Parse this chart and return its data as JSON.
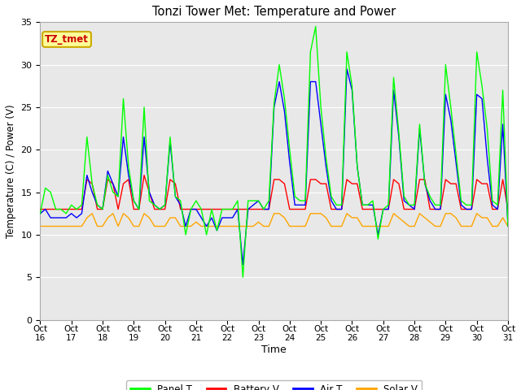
{
  "title": "Tonzi Tower Met: Temperature and Power",
  "xlabel": "Time",
  "ylabel": "Temperature (C) / Power (V)",
  "xlim": [
    0,
    15
  ],
  "ylim": [
    0,
    35
  ],
  "yticks": [
    0,
    5,
    10,
    15,
    20,
    25,
    30,
    35
  ],
  "xtick_labels": [
    "Oct 16",
    "Oct 17",
    "Oct 18",
    "Oct 19",
    "Oct 20",
    "Oct 21",
    "Oct 22",
    "Oct 23",
    "Oct 24",
    "Oct 25",
    "Oct 26",
    "Oct 27",
    "Oct 28",
    "Oct 29",
    "Oct 30",
    "Oct 31"
  ],
  "fig_bg_color": "#ffffff",
  "plot_bg_color": "#e8e8e8",
  "grid_color": "#ffffff",
  "colors": {
    "panel_t": "#00ff00",
    "battery_v": "#ff0000",
    "air_t": "#0000ff",
    "solar_v": "#ffa500"
  },
  "legend_label": "TZ_tmet",
  "legend_box_color": "#ffff99",
  "legend_box_edge": "#ccaa00",
  "series_names": [
    "Panel T",
    "Battery V",
    "Air T",
    "Solar V"
  ],
  "panel_t": [
    12.5,
    15.5,
    15.0,
    13.0,
    13.0,
    12.5,
    13.5,
    13.0,
    13.5,
    21.5,
    16.0,
    13.5,
    13.0,
    17.0,
    15.0,
    14.5,
    26.0,
    18.0,
    14.0,
    13.0,
    25.0,
    14.0,
    13.5,
    13.0,
    13.5,
    21.5,
    14.5,
    14.0,
    10.0,
    13.0,
    14.0,
    13.0,
    10.0,
    13.0,
    10.5,
    13.0,
    13.0,
    13.0,
    14.0,
    5.0,
    14.0,
    14.0,
    14.0,
    13.0,
    14.0,
    25.5,
    30.0,
    26.0,
    20.0,
    14.5,
    14.0,
    14.0,
    31.5,
    34.5,
    25.0,
    19.0,
    14.5,
    13.5,
    13.5,
    31.5,
    27.5,
    18.0,
    13.5,
    13.5,
    14.0,
    9.5,
    13.0,
    13.5,
    28.5,
    22.0,
    14.5,
    13.5,
    13.5,
    23.0,
    16.0,
    14.5,
    13.5,
    13.5,
    30.0,
    25.0,
    19.5,
    14.0,
    13.5,
    13.5,
    31.5,
    27.5,
    22.5,
    14.0,
    13.5,
    27.0,
    11.0
  ],
  "battery_v": [
    13.0,
    13.0,
    13.0,
    13.0,
    13.0,
    13.0,
    13.0,
    13.0,
    13.0,
    16.5,
    16.0,
    13.0,
    13.0,
    16.5,
    16.0,
    13.0,
    16.0,
    16.5,
    13.0,
    13.0,
    17.0,
    15.0,
    13.0,
    13.0,
    13.0,
    16.5,
    16.0,
    13.0,
    13.0,
    13.0,
    13.0,
    13.0,
    13.0,
    13.0,
    13.0,
    13.0,
    13.0,
    13.0,
    13.0,
    13.0,
    13.0,
    13.0,
    13.0,
    13.0,
    13.0,
    16.5,
    16.5,
    16.0,
    13.0,
    13.0,
    13.0,
    13.0,
    16.5,
    16.5,
    16.0,
    16.0,
    13.0,
    13.0,
    13.0,
    16.5,
    16.0,
    16.0,
    13.0,
    13.0,
    13.0,
    13.0,
    13.0,
    13.0,
    16.5,
    16.0,
    13.0,
    13.0,
    13.0,
    16.5,
    16.5,
    13.0,
    13.0,
    13.0,
    16.5,
    16.0,
    16.0,
    13.0,
    13.0,
    13.0,
    16.5,
    16.0,
    16.0,
    13.0,
    13.0,
    16.5,
    13.0
  ],
  "air_t": [
    12.5,
    13.0,
    12.0,
    12.0,
    12.0,
    12.0,
    12.5,
    12.0,
    12.5,
    17.0,
    15.0,
    13.5,
    13.0,
    17.5,
    16.0,
    14.5,
    21.5,
    17.0,
    14.0,
    13.0,
    21.5,
    15.0,
    13.5,
    13.0,
    13.5,
    21.0,
    14.5,
    13.5,
    11.0,
    13.0,
    13.0,
    12.0,
    11.0,
    12.0,
    10.5,
    12.0,
    12.0,
    12.0,
    13.0,
    6.5,
    13.0,
    13.5,
    14.0,
    13.0,
    13.0,
    25.0,
    28.0,
    24.5,
    18.5,
    13.5,
    13.5,
    13.5,
    28.0,
    28.0,
    23.0,
    18.0,
    14.0,
    13.0,
    13.0,
    29.5,
    27.0,
    18.0,
    13.5,
    13.5,
    13.5,
    10.0,
    13.0,
    13.0,
    27.0,
    21.5,
    14.0,
    13.5,
    13.0,
    22.5,
    16.0,
    14.0,
    13.0,
    13.0,
    26.5,
    23.5,
    18.5,
    13.5,
    13.0,
    13.0,
    26.5,
    26.0,
    19.0,
    13.5,
    13.0,
    23.0,
    11.0
  ],
  "solar_v": [
    11.0,
    11.0,
    11.0,
    11.0,
    11.0,
    11.0,
    11.0,
    11.0,
    11.0,
    12.0,
    12.5,
    11.0,
    11.0,
    12.0,
    12.5,
    11.0,
    12.5,
    12.0,
    11.0,
    11.0,
    12.5,
    12.0,
    11.0,
    11.0,
    11.0,
    12.0,
    12.0,
    11.0,
    11.0,
    11.0,
    11.5,
    11.0,
    11.0,
    11.0,
    11.0,
    11.0,
    11.0,
    11.0,
    11.0,
    11.0,
    11.0,
    11.0,
    11.5,
    11.0,
    11.0,
    12.5,
    12.5,
    12.0,
    11.0,
    11.0,
    11.0,
    11.0,
    12.5,
    12.5,
    12.5,
    12.0,
    11.0,
    11.0,
    11.0,
    12.5,
    12.0,
    12.0,
    11.0,
    11.0,
    11.0,
    11.0,
    11.0,
    11.0,
    12.5,
    12.0,
    11.5,
    11.0,
    11.0,
    12.5,
    12.0,
    11.5,
    11.0,
    11.0,
    12.5,
    12.5,
    12.0,
    11.0,
    11.0,
    11.0,
    12.5,
    12.0,
    12.0,
    11.0,
    11.0,
    12.0,
    11.0
  ]
}
